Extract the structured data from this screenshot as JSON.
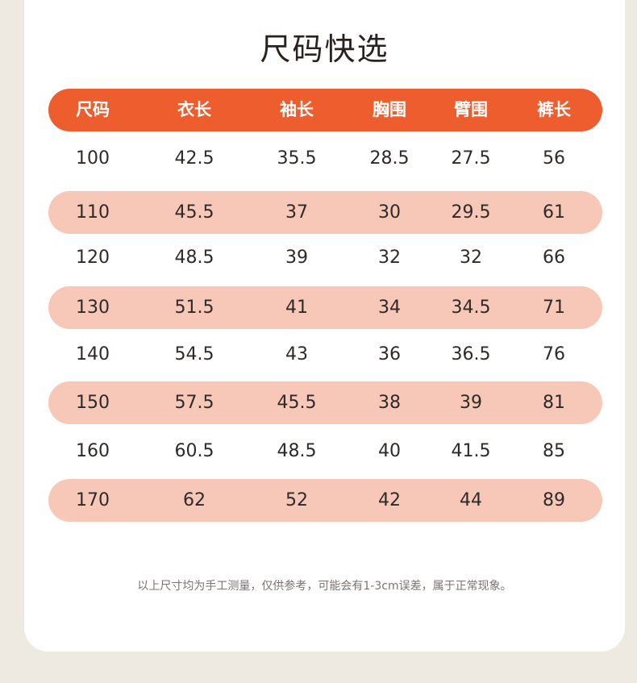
{
  "title": "尺码快选",
  "table": {
    "headers": [
      "尺码",
      "衣长",
      "袖长",
      "胸围",
      "臂围",
      "裤长"
    ],
    "rows": [
      [
        "100",
        "42.5",
        "35.5",
        "28.5",
        "27.5",
        "56"
      ],
      [
        "110",
        "45.5",
        "37",
        "30",
        "29.5",
        "61"
      ],
      [
        "120",
        "48.5",
        "39",
        "32",
        "32",
        "66"
      ],
      [
        "130",
        "51.5",
        "41",
        "34",
        "34.5",
        "71"
      ],
      [
        "140",
        "54.5",
        "43",
        "36",
        "36.5",
        "76"
      ],
      [
        "150",
        "57.5",
        "45.5",
        "38",
        "39",
        "81"
      ],
      [
        "160",
        "60.5",
        "48.5",
        "40",
        "41.5",
        "85"
      ],
      [
        "170",
        "62",
        "52",
        "42",
        "44",
        "89"
      ]
    ]
  },
  "note": "以上尺寸均为手工测量，仅供参考，可能会有1-3cm误差，属于正常现象。",
  "colors": {
    "header_bg": "#ed5d2d",
    "shaded_row_bg": "#f7c8b8",
    "page_bg": "#efeae1"
  }
}
